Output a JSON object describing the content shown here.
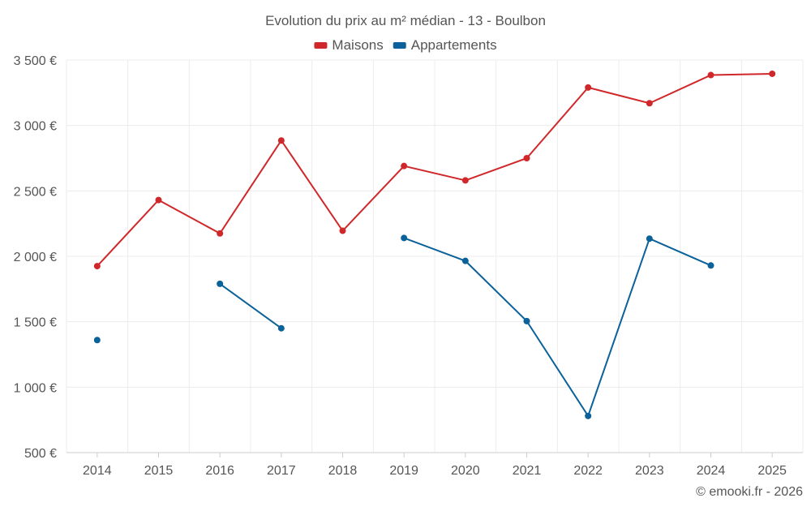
{
  "chart_data": {
    "type": "line",
    "title": "Evolution du prix au m² médian - 13 - Boulbon",
    "xlabel": "",
    "ylabel": "",
    "categories": [
      "2014",
      "2015",
      "2016",
      "2017",
      "2018",
      "2019",
      "2020",
      "2021",
      "2022",
      "2023",
      "2024",
      "2025"
    ],
    "ylim": [
      500,
      3500
    ],
    "yticks": [
      500,
      1000,
      1500,
      2000,
      2500,
      3000,
      3500
    ],
    "ytick_labels": [
      "500 €",
      "1 000 €",
      "1 500 €",
      "2 000 €",
      "2 500 €",
      "3 000 €",
      "3 500 €"
    ],
    "grid": true,
    "legend_position": "top-center",
    "series": [
      {
        "name": "Maisons",
        "color": "#d0282a",
        "values": [
          1925,
          2430,
          2175,
          2885,
          2195,
          2690,
          2580,
          2750,
          3290,
          3170,
          3385,
          3395
        ]
      },
      {
        "name": "Appartements",
        "color": "#0b6199",
        "values": [
          1360,
          null,
          1790,
          1450,
          null,
          2140,
          1965,
          1505,
          780,
          2135,
          1930,
          null
        ]
      }
    ]
  },
  "credit": "© emooki.fr - 2026"
}
